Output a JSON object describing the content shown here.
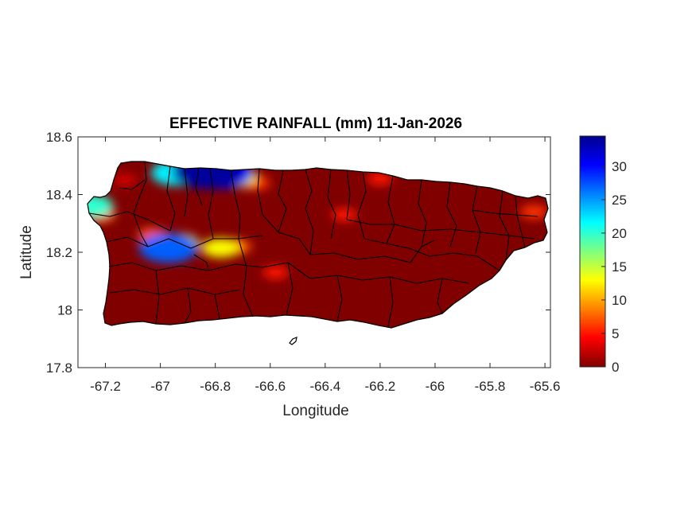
{
  "chart_data": {
    "type": "heatmap",
    "title": "EFFECTIVE RAINFALL (mm) 11-Jan-2026",
    "xlabel": "Longitude",
    "ylabel": "Latitude",
    "xlim": [
      -67.3,
      -65.58
    ],
    "ylim": [
      17.8,
      18.6
    ],
    "xticks": [
      -67.2,
      -67,
      -66.8,
      -66.6,
      -66.4,
      -66.2,
      -66,
      -65.8,
      -65.6
    ],
    "xtick_labels": [
      "-67.2",
      "-67",
      "-66.8",
      "-66.6",
      "-66.4",
      "-66.2",
      "-66",
      "-65.8",
      "-65.6"
    ],
    "yticks": [
      17.8,
      18,
      18.2,
      18.4,
      18.6
    ],
    "ytick_labels": [
      "17.8",
      "18",
      "18.2",
      "18.4",
      "18.6"
    ],
    "colorbar": {
      "colormap": "jet",
      "range": [
        0,
        34.5
      ],
      "ticks": [
        0,
        5,
        10,
        15,
        20,
        25,
        30
      ],
      "tick_labels": [
        "0",
        "5",
        "10",
        "15",
        "20",
        "25",
        "30"
      ]
    },
    "base_value_mm": 0,
    "rain_cells": [
      {
        "lon": -66.94,
        "lat": 18.475,
        "value_mm": 22
      },
      {
        "lon": -66.83,
        "lat": 18.48,
        "value_mm": 34
      },
      {
        "lon": -66.78,
        "lat": 18.475,
        "value_mm": 30
      },
      {
        "lon": -66.72,
        "lat": 18.46,
        "value_mm": 14
      },
      {
        "lon": -66.65,
        "lat": 18.44,
        "value_mm": 6
      },
      {
        "lon": -67.26,
        "lat": 18.36,
        "value_mm": 20
      },
      {
        "lon": -67.22,
        "lat": 18.33,
        "value_mm": 8
      },
      {
        "lon": -66.97,
        "lat": 18.215,
        "value_mm": 27
      },
      {
        "lon": -66.93,
        "lat": 18.23,
        "value_mm": 14
      },
      {
        "lon": -67.03,
        "lat": 18.26,
        "value_mm": 7
      },
      {
        "lon": -66.78,
        "lat": 18.215,
        "value_mm": 13
      },
      {
        "lon": -66.72,
        "lat": 18.22,
        "value_mm": 7
      },
      {
        "lon": -66.33,
        "lat": 18.33,
        "value_mm": 5
      },
      {
        "lon": -66.2,
        "lat": 18.455,
        "value_mm": 5
      },
      {
        "lon": -66.58,
        "lat": 18.13,
        "value_mm": 5
      },
      {
        "lon": -65.64,
        "lat": 18.34,
        "value_mm": 6
      },
      {
        "lon": -66.95,
        "lat": 18.48,
        "value_mm": 5
      },
      {
        "lon": -67.13,
        "lat": 18.45,
        "value_mm": 3
      }
    ]
  }
}
